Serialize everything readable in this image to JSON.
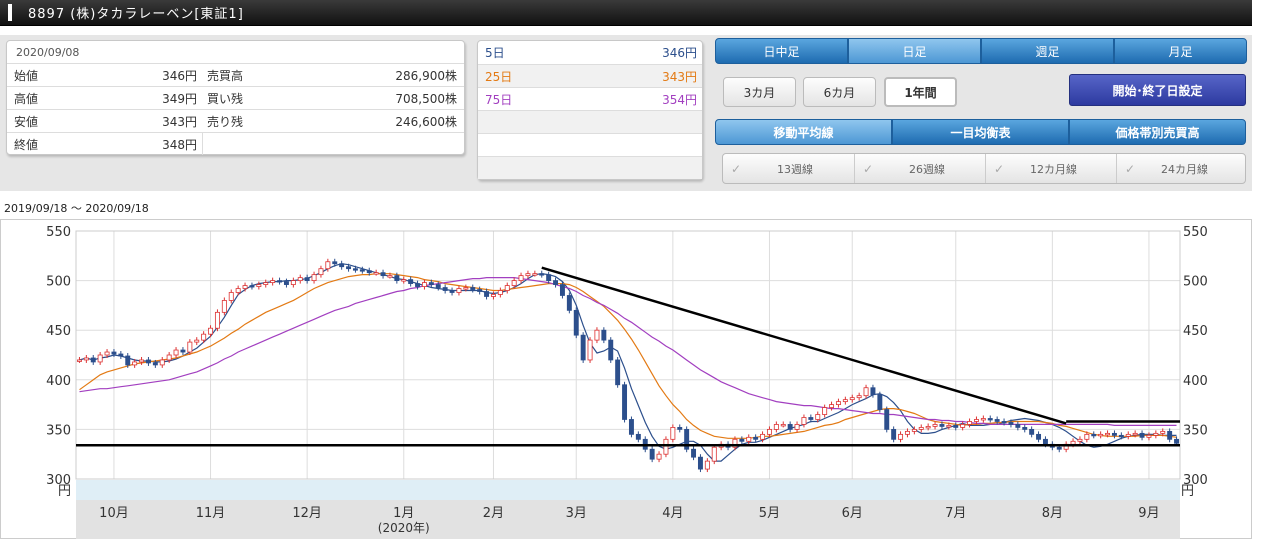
{
  "header": {
    "title": "8897 (株)タカラレーベン[東証1]"
  },
  "info": {
    "date": "2020/09/08",
    "rows": [
      {
        "l1": "始値",
        "v1": "346円",
        "l2": "売買高",
        "v2": "286,900株"
      },
      {
        "l1": "高値",
        "v1": "349円",
        "l2": "買い残",
        "v2": "708,500株"
      },
      {
        "l1": "安値",
        "v1": "343円",
        "l2": "売り残",
        "v2": "246,600株"
      },
      {
        "l1": "終値",
        "v1": "348円",
        "l2": "",
        "v2": ""
      }
    ]
  },
  "ma": {
    "rows": [
      {
        "label": "5日",
        "value": "346円",
        "color": "#2c4f8c"
      },
      {
        "label": "25日",
        "value": "343円",
        "color": "#e37a14"
      },
      {
        "label": "75日",
        "value": "354円",
        "color": "#a23fc0"
      }
    ]
  },
  "period_tabs": [
    "日中足",
    "日足",
    "週足",
    "月足"
  ],
  "range_buttons": [
    "3カ月",
    "6カ月",
    "1年間"
  ],
  "date_setting": "開始･終了日設定",
  "indicator_tabs": [
    "移動平均線",
    "一目均衡表",
    "価格帯別売買高"
  ],
  "ma_checks": [
    "13週線",
    "26週線",
    "12カ月線",
    "24カ月線"
  ],
  "range_text": "2019/09/18 〜 2020/09/18",
  "chart_data": {
    "type": "candlestick",
    "ylim": [
      300,
      550
    ],
    "yticks": [
      300,
      350,
      400,
      450,
      500,
      550
    ],
    "yunit": "円",
    "x_ticks": [
      {
        "label": "10月",
        "i": 5
      },
      {
        "label": "11月",
        "i": 19
      },
      {
        "label": "12月",
        "i": 33
      },
      {
        "label": "1月",
        "i": 47
      },
      {
        "label": "2月",
        "i": 60
      },
      {
        "label": "3月",
        "i": 72
      },
      {
        "label": "4月",
        "i": 86
      },
      {
        "label": "5月",
        "i": 100
      },
      {
        "label": "6月",
        "i": 112
      },
      {
        "label": "7月",
        "i": 127
      },
      {
        "label": "8月",
        "i": 141
      },
      {
        "label": "9月",
        "i": 155
      }
    ],
    "year_label": "(2020年)",
    "closes": [
      420,
      422,
      418,
      425,
      428,
      426,
      424,
      415,
      418,
      420,
      417,
      415,
      420,
      425,
      430,
      428,
      438,
      440,
      446,
      452,
      468,
      480,
      488,
      492,
      495,
      494,
      496,
      498,
      500,
      499,
      496,
      500,
      503,
      500,
      506,
      512,
      519,
      517,
      514,
      512,
      511,
      510,
      508,
      508,
      505,
      505,
      500,
      501,
      497,
      494,
      498,
      496,
      493,
      490,
      488,
      492,
      493,
      491,
      489,
      484,
      486,
      490,
      495,
      500,
      505,
      507,
      507,
      506,
      500,
      496,
      485,
      470,
      445,
      420,
      440,
      450,
      440,
      420,
      395,
      360,
      345,
      340,
      330,
      320,
      325,
      340,
      352,
      350,
      330,
      322,
      310,
      318,
      332,
      335,
      332,
      340,
      338,
      342,
      340,
      345,
      350,
      355,
      355,
      350,
      355,
      362,
      360,
      365,
      372,
      375,
      378,
      380,
      382,
      384,
      392,
      385,
      370,
      350,
      340,
      345,
      348,
      350,
      352,
      353,
      355,
      353,
      354,
      352,
      355,
      358,
      360,
      361,
      360,
      358,
      357,
      355,
      352,
      350,
      345,
      340,
      335,
      332,
      330,
      335,
      338,
      340,
      345,
      344,
      345,
      346,
      344,
      343,
      345,
      346,
      342,
      344,
      346,
      348,
      340,
      336
    ],
    "series": [
      {
        "name": "5日",
        "color": "#2c4f8c",
        "values": [
          420,
          422,
          420,
          422,
          423,
          425,
          424,
          422,
          420,
          419,
          419,
          418,
          418,
          419,
          421,
          424,
          428,
          432,
          438,
          444,
          453,
          463,
          475,
          486,
          491,
          495,
          497,
          498,
          499,
          499,
          500,
          500,
          501,
          502,
          505,
          508,
          512,
          515,
          517,
          516,
          514,
          512,
          510,
          508,
          506,
          504,
          502,
          501,
          499,
          497,
          495,
          493,
          492,
          491,
          490,
          490,
          490,
          490,
          490,
          488,
          487,
          488,
          490,
          493,
          497,
          502,
          506,
          507,
          506,
          504,
          499,
          490,
          475,
          455,
          437,
          427,
          429,
          433,
          429,
          412,
          391,
          374,
          357,
          343,
          333,
          330,
          332,
          335,
          338,
          338,
          334,
          325,
          318,
          318,
          324,
          330,
          335,
          337,
          337,
          339,
          342,
          345,
          348,
          351,
          353,
          355,
          358,
          358,
          361,
          364,
          367,
          371,
          375,
          378,
          381,
          385,
          386,
          383,
          377,
          369,
          358,
          350,
          346,
          346,
          347,
          350,
          352,
          354,
          356,
          354,
          354,
          354,
          355,
          355,
          357,
          359,
          360,
          361,
          360,
          359,
          357,
          355,
          352,
          348,
          343,
          338,
          334,
          332,
          333,
          335,
          338,
          341,
          343,
          344,
          345,
          345,
          345,
          344,
          344,
          344
        ]
      },
      {
        "name": "25日",
        "color": "#e37a14",
        "values": [
          390,
          395,
          400,
          405,
          408,
          410,
          412,
          414,
          416,
          417,
          418,
          419,
          420,
          421,
          422,
          424,
          426,
          428,
          431,
          434,
          438,
          442,
          447,
          451,
          456,
          460,
          464,
          468,
          471,
          474,
          477,
          480,
          484,
          488,
          492,
          495,
          498,
          500,
          502,
          504,
          505,
          506,
          506,
          507,
          507,
          507,
          506,
          505,
          504,
          503,
          501,
          500,
          499,
          497,
          496,
          495,
          494,
          493,
          492,
          491,
          490,
          490,
          491,
          492,
          493,
          494,
          495,
          496,
          497,
          497,
          497,
          496,
          493,
          489,
          484,
          479,
          474,
          467,
          460,
          451,
          441,
          430,
          418,
          406,
          394,
          384,
          375,
          368,
          360,
          354,
          349,
          346,
          343,
          342,
          341,
          341,
          341,
          341,
          342,
          343,
          343,
          344,
          345,
          346,
          347,
          348,
          350,
          352,
          354,
          355,
          357,
          360,
          362,
          364,
          366,
          368,
          370,
          371,
          371,
          370,
          368,
          366,
          363,
          360,
          358,
          357,
          356,
          355,
          354,
          355,
          355,
          356,
          356,
          357,
          357,
          358,
          358,
          358,
          358,
          358,
          357,
          356,
          354,
          353,
          351,
          349,
          347,
          345,
          344,
          343,
          343,
          343,
          343,
          343,
          344,
          344,
          344,
          344,
          343,
          342
        ]
      },
      {
        "name": "75日",
        "color": "#a23fc0",
        "values": [
          388,
          389,
          390,
          391,
          391,
          392,
          393,
          394,
          395,
          396,
          397,
          398,
          399,
          400,
          402,
          404,
          406,
          408,
          411,
          414,
          417,
          421,
          424,
          428,
          431,
          434,
          437,
          440,
          443,
          446,
          449,
          452,
          455,
          458,
          461,
          464,
          467,
          470,
          472,
          474,
          477,
          479,
          481,
          483,
          485,
          487,
          489,
          490,
          492,
          493,
          495,
          496,
          497,
          498,
          499,
          500,
          501,
          502,
          502,
          503,
          503,
          503,
          503,
          503,
          502,
          501,
          500,
          499,
          498,
          496,
          494,
          492,
          489,
          485,
          482,
          478,
          475,
          471,
          467,
          462,
          458,
          453,
          448,
          443,
          439,
          434,
          430,
          425,
          420,
          415,
          410,
          406,
          402,
          398,
          395,
          392,
          389,
          386,
          384,
          382,
          380,
          378,
          377,
          376,
          375,
          374,
          374,
          373,
          372,
          371,
          371,
          370,
          369,
          368,
          367,
          366,
          366,
          365,
          365,
          364,
          363,
          362,
          361,
          360,
          360,
          359,
          359,
          358,
          358,
          357,
          356,
          356,
          355,
          355,
          355,
          355,
          355,
          355,
          355,
          355,
          355,
          355,
          355,
          355,
          355,
          355,
          355,
          355,
          355,
          355,
          354,
          354,
          354,
          354,
          354,
          354,
          354,
          354,
          354,
          354
        ]
      }
    ],
    "trendlines": [
      {
        "from": [
          67,
          513
        ],
        "to": [
          143,
          356
        ]
      },
      {
        "from": [
          143,
          358
        ],
        "to": [
          168,
          358
        ]
      },
      {
        "from": [
          0,
          334
        ],
        "to": [
          168,
          334
        ]
      }
    ]
  }
}
